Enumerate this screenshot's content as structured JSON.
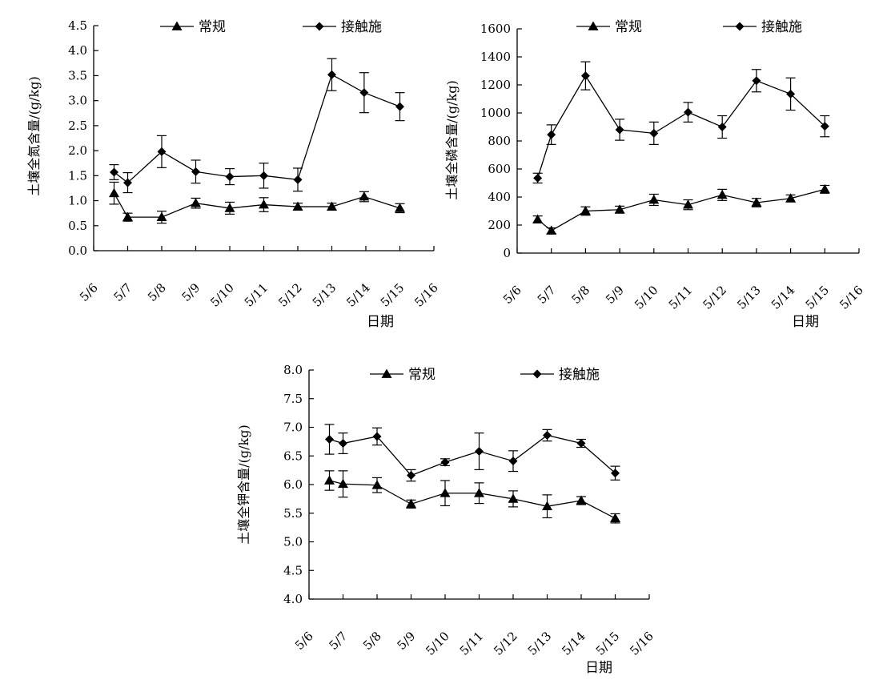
{
  "chart_data": [
    {
      "type": "line",
      "ylabel": "土壤全氮含量/(g/kg)",
      "xlabel": "日期",
      "x_ticks": [
        "5/6",
        "5/7",
        "5/8",
        "5/9",
        "5/10",
        "5/11",
        "5/12",
        "5/13",
        "5/14",
        "5/15",
        "5/16"
      ],
      "ylim": [
        0,
        4.5
      ],
      "y_ticks": [
        "0.0",
        "0.5",
        "1.0",
        "1.5",
        "2.0",
        "2.5",
        "3.0",
        "3.5",
        "4.0",
        "4.5"
      ],
      "y_tick_values": [
        0,
        0.5,
        1.0,
        1.5,
        2.0,
        2.5,
        3.0,
        3.5,
        4.0,
        4.5
      ],
      "legend_position": "top",
      "series": [
        {
          "name": "常规",
          "marker": "triangle",
          "x": [
            0.6,
            1.0,
            2.0,
            3.0,
            4.0,
            5.0,
            6.0,
            7.0,
            7.95,
            9.0
          ],
          "y": [
            1.15,
            0.67,
            0.67,
            0.95,
            0.85,
            0.92,
            0.88,
            0.88,
            1.08,
            0.85
          ],
          "err": [
            0.22,
            0.08,
            0.12,
            0.1,
            0.12,
            0.14,
            0.07,
            0.07,
            0.1,
            0.09
          ]
        },
        {
          "name": "接触施",
          "marker": "diamond",
          "x": [
            0.6,
            1.0,
            2.0,
            3.0,
            4.0,
            5.0,
            6.0,
            7.0,
            7.95,
            9.0
          ],
          "y": [
            1.57,
            1.36,
            1.98,
            1.58,
            1.48,
            1.5,
            1.42,
            3.52,
            3.16,
            2.88
          ],
          "err": [
            0.15,
            0.2,
            0.32,
            0.23,
            0.16,
            0.25,
            0.23,
            0.32,
            0.4,
            0.28
          ]
        }
      ]
    },
    {
      "type": "line",
      "ylabel": "土壤全磷含量/(g/kg)",
      "xlabel": "日期",
      "x_ticks": [
        "5/6",
        "5/7",
        "5/8",
        "5/9",
        "5/10",
        "5/11",
        "5/12",
        "5/13",
        "5/14",
        "5/15",
        "5/16"
      ],
      "ylim": [
        0,
        1600
      ],
      "y_ticks": [
        "0",
        "200",
        "400",
        "600",
        "800",
        "1000",
        "1200",
        "1400",
        "1600"
      ],
      "y_tick_values": [
        0,
        200,
        400,
        600,
        800,
        1000,
        1200,
        1400,
        1600
      ],
      "legend_position": "top",
      "series": [
        {
          "name": "常规",
          "marker": "triangle",
          "x": [
            0.6,
            1.0,
            2.0,
            3.0,
            4.0,
            5.0,
            6.0,
            7.0,
            8.0,
            9.0
          ],
          "y": [
            240,
            160,
            300,
            310,
            380,
            345,
            415,
            360,
            390,
            455
          ],
          "err": [
            25,
            20,
            30,
            25,
            40,
            35,
            40,
            30,
            25,
            28
          ]
        },
        {
          "name": "接触施",
          "marker": "diamond",
          "x": [
            0.6,
            1.0,
            2.0,
            3.0,
            4.0,
            5.0,
            6.0,
            7.0,
            8.0,
            9.0
          ],
          "y": [
            535,
            845,
            1265,
            880,
            855,
            1005,
            900,
            1230,
            1135,
            905
          ],
          "err": [
            35,
            70,
            100,
            75,
            80,
            70,
            80,
            80,
            115,
            75
          ]
        }
      ]
    },
    {
      "type": "line",
      "ylabel": "土壤全钾含量/(g/kg)",
      "xlabel": "日期",
      "x_ticks": [
        "5/6",
        "5/7",
        "5/8",
        "5/9",
        "5/10",
        "5/11",
        "5/12",
        "5/13",
        "5/14",
        "5/15",
        "5/16"
      ],
      "ylim": [
        4.0,
        8.0
      ],
      "y_ticks": [
        "4.0",
        "4.5",
        "5.0",
        "5.5",
        "6.0",
        "6.5",
        "7.0",
        "7.5",
        "8.0"
      ],
      "y_tick_values": [
        4.0,
        4.5,
        5.0,
        5.5,
        6.0,
        6.5,
        7.0,
        7.5,
        8.0
      ],
      "legend_position": "top",
      "series": [
        {
          "name": "常规",
          "marker": "triangle",
          "x": [
            0.6,
            1.0,
            2.0,
            3.0,
            4.0,
            5.0,
            6.0,
            7.0,
            8.0,
            9.0
          ],
          "y": [
            6.07,
            6.01,
            5.99,
            5.66,
            5.85,
            5.85,
            5.75,
            5.62,
            5.72,
            5.41
          ],
          "err": [
            0.17,
            0.23,
            0.13,
            0.07,
            0.22,
            0.18,
            0.14,
            0.2,
            0.07,
            0.08
          ]
        },
        {
          "name": "接触施",
          "marker": "diamond",
          "x": [
            0.6,
            1.0,
            2.0,
            3.0,
            4.0,
            5.0,
            6.0,
            7.0,
            8.0,
            9.0
          ],
          "y": [
            6.79,
            6.72,
            6.84,
            6.16,
            6.39,
            6.58,
            6.41,
            6.86,
            6.72,
            6.2
          ],
          "err": [
            0.26,
            0.18,
            0.15,
            0.1,
            0.06,
            0.32,
            0.18,
            0.1,
            0.07,
            0.12
          ]
        }
      ]
    }
  ]
}
